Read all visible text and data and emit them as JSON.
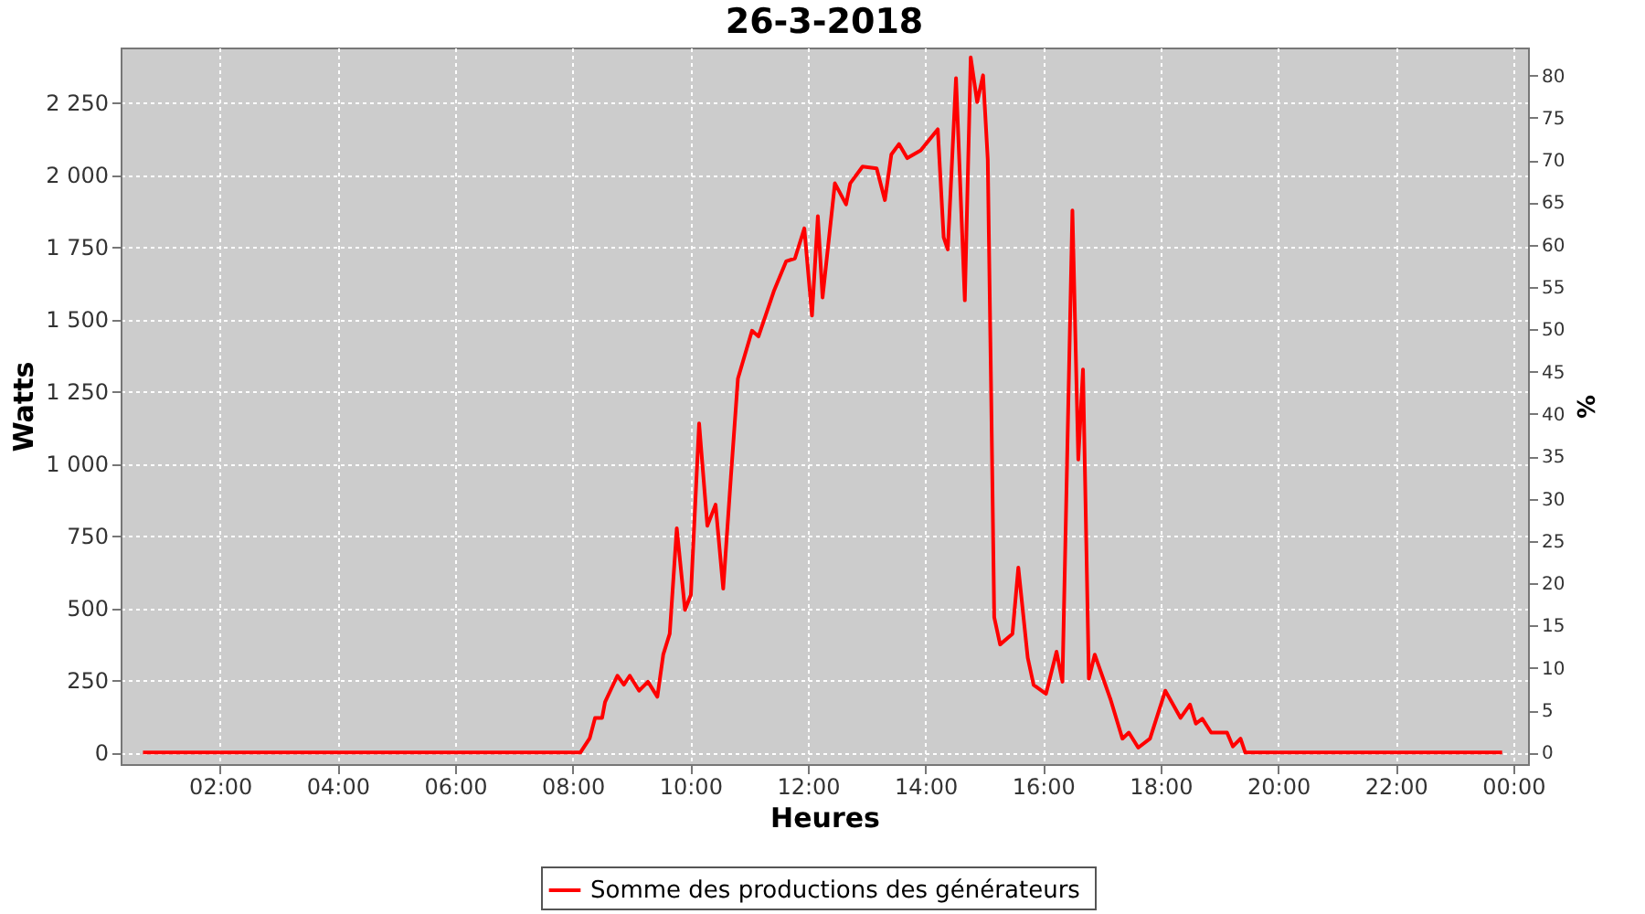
{
  "chart_data": {
    "type": "line",
    "title": "26-3-2018",
    "xlabel": "Heures",
    "ylabel": "Watts",
    "y2label": "%",
    "xlim": [
      0.31,
      24.25
    ],
    "xticks": [
      {
        "value": 2,
        "label": "02:00"
      },
      {
        "value": 4,
        "label": "04:00"
      },
      {
        "value": 6,
        "label": "06:00"
      },
      {
        "value": 8,
        "label": "08:00"
      },
      {
        "value": 10,
        "label": "10:00"
      },
      {
        "value": 12,
        "label": "12:00"
      },
      {
        "value": 14,
        "label": "14:00"
      },
      {
        "value": 16,
        "label": "16:00"
      },
      {
        "value": 18,
        "label": "18:00"
      },
      {
        "value": 20,
        "label": "20:00"
      },
      {
        "value": 22,
        "label": "22:00"
      },
      {
        "value": 24,
        "label": "00:00"
      }
    ],
    "ylim": [
      -40,
      2440
    ],
    "yticks": [
      0,
      250,
      500,
      750,
      {
        "value": 1000,
        "label": "1 000"
      },
      {
        "value": 1250,
        "label": "1 250"
      },
      {
        "value": 1500,
        "label": "1 500"
      },
      {
        "value": 1750,
        "label": "1 750"
      },
      {
        "value": 2000,
        "label": "2 000"
      },
      {
        "value": 2250,
        "label": "2 250"
      }
    ],
    "y2lim": [
      -1.37,
      83.3
    ],
    "y2ticks": [
      0,
      5,
      10,
      15,
      20,
      25,
      30,
      35,
      40,
      45,
      50,
      55,
      60,
      65,
      70,
      75,
      80
    ],
    "grid": true,
    "legend": "bottom",
    "marker": "none",
    "line_style": "solid",
    "series": [
      {
        "name": "Somme des productions des  générateurs",
        "color": "#ff0000",
        "x": [
          0.69,
          8.13,
          8.29,
          8.38,
          8.5,
          8.55,
          8.76,
          8.87,
          8.97,
          9.13,
          9.28,
          9.44,
          9.54,
          9.65,
          9.77,
          9.91,
          10.01,
          10.15,
          10.29,
          10.43,
          10.56,
          10.69,
          10.81,
          11.05,
          11.16,
          11.42,
          11.63,
          11.78,
          11.94,
          12.07,
          12.17,
          12.25,
          12.46,
          12.65,
          12.72,
          12.93,
          13.17,
          13.31,
          13.42,
          13.55,
          13.69,
          13.92,
          14.21,
          14.31,
          14.38,
          14.52,
          14.67,
          14.77,
          14.88,
          14.98,
          15.06,
          15.12,
          15.17,
          15.27,
          15.48,
          15.58,
          15.74,
          15.84,
          16.05,
          16.23,
          16.33,
          16.5,
          16.6,
          16.68,
          16.78,
          16.88,
          17.15,
          17.35,
          17.46,
          17.62,
          17.82,
          18.08,
          18.34,
          18.5,
          18.6,
          18.71,
          18.86,
          19.13,
          19.23,
          19.36,
          19.44,
          23.81
        ],
        "values": [
          0,
          0,
          50,
          120,
          120,
          175,
          266,
          235,
          266,
          214,
          245,
          193,
          339,
          411,
          776,
          494,
          546,
          1139,
          785,
          858,
          567,
          952,
          1294,
          1460,
          1440,
          1596,
          1700,
          1710,
          1814,
          1512,
          1856,
          1575,
          1970,
          1897,
          1970,
          2028,
          2022,
          1912,
          2070,
          2106,
          2057,
          2084,
          2157,
          1783,
          1741,
          2334,
          1565,
          2406,
          2251,
          2344,
          2053,
          1212,
          468,
          374,
          411,
          640,
          328,
          234,
          203,
          349,
          245,
          1876,
          1014,
          1326,
          256,
          339,
          183,
          48,
          69,
          17,
          48,
          214,
          120,
          166,
          100,
          117,
          69,
          69,
          21,
          48,
          0,
          0
        ]
      }
    ]
  }
}
